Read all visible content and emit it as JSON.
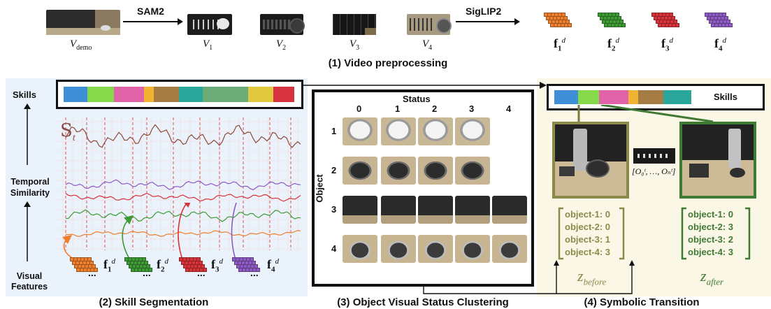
{
  "preprocess": {
    "sam_label": "SAM2",
    "siglip_label": "SigLIP2",
    "caption": "(1) Video preprocessing",
    "video_labels": [
      "V",
      "V",
      "V",
      "V",
      "V"
    ],
    "video_subs": [
      "demo",
      "1",
      "2",
      "3",
      "4"
    ],
    "feature_labels": [
      "f",
      "f",
      "f",
      "f"
    ],
    "feature_subs": [
      "1",
      "2",
      "3",
      "4"
    ],
    "feature_sup": "d",
    "feature_colors": [
      "#f07f2c",
      "#3d9a34",
      "#d9333a",
      "#8e5bc4"
    ]
  },
  "segmentation": {
    "skills_label": "Skills",
    "temporal_label_1": "Temporal",
    "temporal_label_2": "Similarity",
    "visual_label_1": "Visual",
    "visual_label_2": "Features",
    "s_symbol": "S",
    "s_sub": "t",
    "caption": "(2) Skill Segmentation",
    "skill_colors": [
      "#3e8fd8",
      "#86d94a",
      "#e063a8",
      "#f0b432",
      "#a67c45",
      "#2aa79b",
      "#6aab77",
      "#e2c83c",
      "#d6323f"
    ],
    "feature_labels": [
      "f",
      "f",
      "f",
      "f"
    ],
    "feature_subs": [
      "1",
      "2",
      "3",
      "4"
    ],
    "feature_sup": "d",
    "dots": "..."
  },
  "clustering": {
    "status_label": "Status",
    "object_label": "Object",
    "status_cols": [
      "0",
      "1",
      "2",
      "3",
      "4"
    ],
    "object_rows": [
      "1",
      "2",
      "3",
      "4"
    ],
    "caption": "(3) Object Visual Status Clustering"
  },
  "transition": {
    "skills_label": "Skills",
    "skill_colors": [
      "#3e8fd8",
      "#86d94a",
      "#e063a8",
      "#f0b432",
      "#a67c45",
      "#2aa79b"
    ],
    "obs_label": "[O₀ᵗ, …, Oₙᵗ]",
    "before_lines": [
      "object-1: 0",
      "object-2: 0",
      "object-3: 1",
      "object-4: 3"
    ],
    "after_lines": [
      "object-1: 0",
      "object-2: 3",
      "object-3: 2",
      "object-4: 3"
    ],
    "before_color": "#8c8a4a",
    "after_color": "#3f7a35",
    "z_before_main": "z",
    "z_before_sub": "before",
    "z_after_main": "z",
    "z_after_sub": "after",
    "caption": "(4) Symbolic Transition"
  }
}
